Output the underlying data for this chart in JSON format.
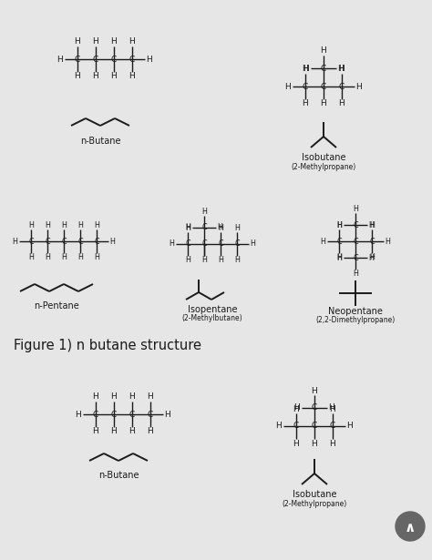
{
  "bg_color": "#e6e6e6",
  "line_color": "#1a1a1a",
  "text_color": "#1a1a1a",
  "title": "Figure 1) n butane structure",
  "s1_nbutane_label": "n-Butane",
  "s1_isobutane_label": "Isobutane",
  "s1_isobutane_sublabel": "(2-Methylpropane)",
  "s2_npentane_label": "n-Pentane",
  "s2_isopentane_label": "Isopentane",
  "s2_isopentane_sublabel": "(2-Methylbutane)",
  "s2_neopentane_label": "Neopentane",
  "s2_neopentane_sublabel": "(2,2-Dimethylpropane)",
  "s3_nbutane_label": "n-Butane",
  "s3_isobutane_label": "Isobutane",
  "s3_isobutane_sublabel": "(2-Methylpropane)"
}
